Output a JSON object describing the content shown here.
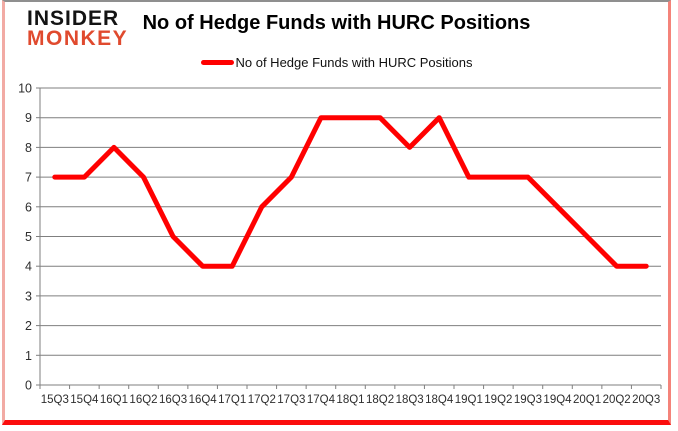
{
  "logo": {
    "line1": "INSIDER",
    "line2": "MONKEY"
  },
  "title": "No of Hedge Funds with HURC Positions",
  "legend": {
    "label": "No of Hedge Funds with HURC Positions"
  },
  "colors": {
    "line": "#ff0000",
    "grid": "#7f7f7f",
    "axis": "#7f7f7f",
    "axis_text": "#2e2e2e",
    "logo_accent": "#e04a2e",
    "title_text": "#000000"
  },
  "chart_data": {
    "type": "line",
    "categories": [
      "15Q3",
      "15Q4",
      "16Q1",
      "16Q2",
      "16Q3",
      "16Q4",
      "17Q1",
      "17Q2",
      "17Q3",
      "17Q4",
      "18Q1",
      "18Q2",
      "18Q3",
      "18Q4",
      "19Q1",
      "19Q2",
      "19Q3",
      "19Q4",
      "20Q1",
      "20Q2",
      "20Q3"
    ],
    "series": [
      {
        "name": "No of Hedge Funds with HURC Positions",
        "values": [
          7,
          7,
          8,
          7,
          5,
          4,
          4,
          6,
          7,
          9,
          9,
          9,
          8,
          9,
          7,
          7,
          7,
          6,
          5,
          4,
          4
        ]
      }
    ],
    "title": "No of Hedge Funds with HURC Positions",
    "xlabel": "",
    "ylabel": "",
    "ylim": [
      0,
      10
    ],
    "ytick_step": 1,
    "grid": true,
    "legend_position": "top"
  }
}
